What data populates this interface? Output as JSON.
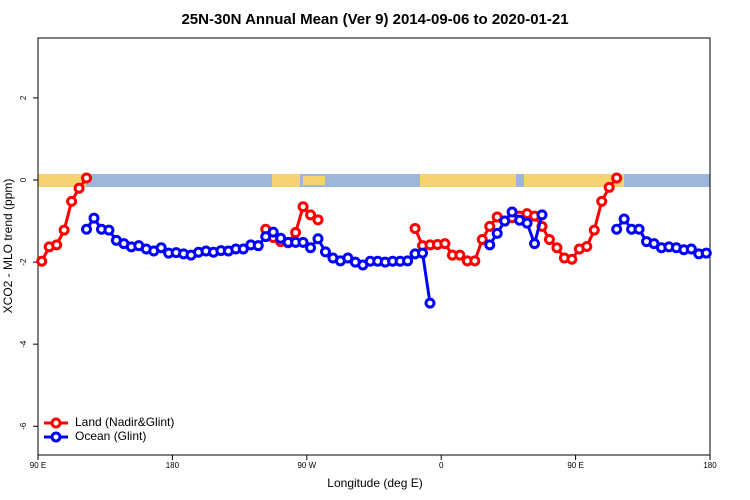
{
  "chart_data": {
    "type": "line",
    "title": "25N-30N Annual Mean (Ver 9)   2014-09-06 to 2020-01-21",
    "xlabel": "Longitude (deg E)",
    "ylabel": "XCO2 - MLO trend (ppm)",
    "xlim": [
      90,
      540
    ],
    "xticks": [
      {
        "value": 90,
        "label": "90 E"
      },
      180,
      {
        "value": 270,
        "label": "90 W"
      },
      {
        "value": 360,
        "label": "0"
      },
      {
        "value": 450,
        "label": "90 E"
      },
      {
        "value": 540,
        "label": "180"
      }
    ],
    "ylim": [
      -6.7,
      3.46
    ],
    "yticks": [
      -6,
      -4,
      -2,
      0,
      2
    ],
    "legend": "bottom-left",
    "x": [
      92.5,
      97.5,
      102.5,
      107.5,
      112.5,
      117.5,
      122.5,
      127.5,
      132.5,
      137.5,
      142.5,
      147.5,
      152.5,
      157.5,
      162.5,
      167.5,
      172.5,
      177.5,
      182.5,
      187.5,
      192.5,
      197.5,
      202.5,
      207.5,
      212.5,
      217.5,
      222.5,
      227.5,
      232.5,
      237.5,
      242.5,
      247.5,
      252.5,
      257.5,
      262.5,
      267.5,
      272.5,
      277.5,
      282.5,
      287.5,
      292.5,
      297.5,
      302.5,
      307.5,
      312.5,
      317.5,
      322.5,
      327.5,
      332.5,
      337.5,
      342.5,
      347.5,
      352.5,
      357.5,
      362.5,
      367.5,
      372.5,
      377.5,
      382.5,
      387.5,
      392.5,
      397.5,
      402.5,
      407.5,
      412.5,
      417.5,
      422.5,
      427.5,
      432.5,
      437.5,
      442.5,
      447.5,
      452.5,
      457.5,
      462.5,
      467.5,
      472.5,
      477.5,
      482.5,
      487.5,
      492.5,
      497.5,
      502.5,
      507.5,
      512.5,
      517.5,
      522.5,
      527.5,
      532.5,
      537.5
    ],
    "series": [
      {
        "name": "Land (Nadir&Glint)",
        "color": "#ff0000",
        "values": [
          -1.98,
          -1.63,
          -1.58,
          -1.22,
          -0.52,
          -0.2,
          0.05,
          null,
          null,
          null,
          null,
          null,
          null,
          null,
          null,
          null,
          null,
          null,
          null,
          null,
          null,
          null,
          null,
          null,
          null,
          null,
          null,
          null,
          null,
          null,
          -1.2,
          -1.4,
          -1.5,
          -1.53,
          -1.28,
          -0.65,
          -0.85,
          -0.97,
          null,
          null,
          null,
          null,
          null,
          null,
          null,
          null,
          null,
          null,
          null,
          null,
          -1.18,
          -1.6,
          -1.58,
          -1.57,
          -1.55,
          -1.83,
          -1.83,
          -1.97,
          -1.97,
          -1.45,
          -1.13,
          -0.9,
          -1.0,
          -0.92,
          -0.88,
          -0.82,
          -0.88,
          -1.13,
          -1.45,
          -1.65,
          -1.9,
          -1.93,
          -1.68,
          -1.62,
          -1.22,
          -0.52,
          -0.18,
          0.05,
          null,
          null,
          null,
          null,
          null,
          null,
          null,
          null,
          null,
          null,
          null,
          null
        ]
      },
      {
        "name": "Ocean (Glint)",
        "color": "#0000ff",
        "values": [
          null,
          null,
          null,
          null,
          null,
          null,
          -1.2,
          -0.93,
          -1.2,
          -1.22,
          -1.47,
          -1.55,
          -1.63,
          -1.6,
          -1.68,
          -1.73,
          -1.65,
          -1.78,
          -1.77,
          -1.8,
          -1.83,
          -1.76,
          -1.73,
          -1.76,
          -1.72,
          -1.73,
          -1.68,
          -1.68,
          -1.58,
          -1.6,
          -1.38,
          -1.27,
          -1.42,
          -1.52,
          -1.52,
          -1.52,
          -1.65,
          -1.43,
          -1.75,
          -1.9,
          -1.97,
          -1.9,
          -2.0,
          -2.07,
          -1.98,
          -1.98,
          -2.0,
          -1.98,
          -1.98,
          -1.97,
          -1.8,
          -1.78,
          -3.0,
          null,
          null,
          null,
          null,
          null,
          null,
          null,
          -1.58,
          -1.3,
          -1.0,
          -0.78,
          -0.98,
          -1.05,
          -1.55,
          -0.85,
          null,
          null,
          null,
          null,
          null,
          null,
          null,
          null,
          null,
          -1.2,
          -0.95,
          -1.2,
          -1.2,
          -1.5,
          -1.55,
          -1.65,
          -1.63,
          -1.65,
          -1.7,
          -1.68,
          -1.8,
          -1.78
        ]
      }
    ]
  }
}
